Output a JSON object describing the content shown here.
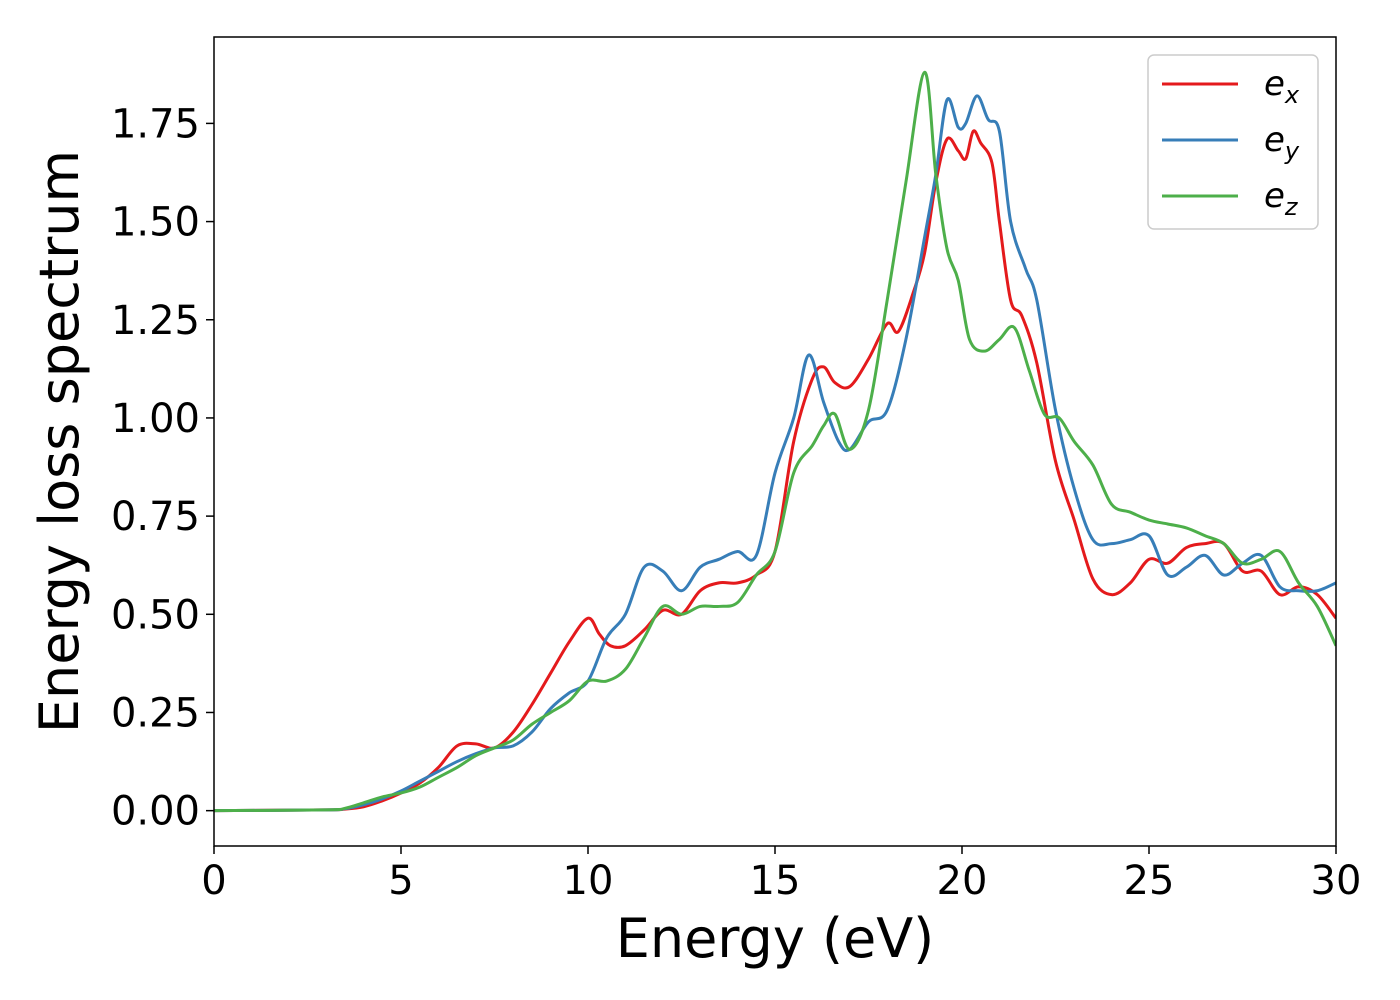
{
  "chart_data": {
    "type": "line",
    "title": "",
    "xlabel": "Energy (eV)",
    "ylabel": "Energy loss spectrum",
    "xlim": [
      0,
      30
    ],
    "ylim": [
      -0.09,
      1.97
    ],
    "xticks": [
      0,
      5,
      10,
      15,
      20,
      25,
      30
    ],
    "yticks": [
      0.0,
      0.25,
      0.5,
      0.75,
      1.0,
      1.25,
      1.5,
      1.75
    ],
    "xtick_labels": [
      "0",
      "5",
      "10",
      "15",
      "20",
      "25",
      "30"
    ],
    "ytick_labels": [
      "0.00",
      "0.25",
      "0.50",
      "0.75",
      "1.00",
      "1.25",
      "1.50",
      "1.75"
    ],
    "grid": false,
    "legend_position": "top-right",
    "series": [
      {
        "name": "e",
        "sub": "x",
        "color": "#e41a1c",
        "x": [
          0,
          3,
          3.5,
          4,
          4.5,
          5,
          5.5,
          6,
          6.5,
          7,
          7.5,
          8,
          8.5,
          9,
          9.5,
          10,
          10.3,
          10.6,
          11,
          11.5,
          12,
          12.5,
          13,
          13.5,
          14,
          14.5,
          15,
          15.5,
          16,
          16.3,
          16.6,
          17,
          17.5,
          18,
          18.3,
          18.7,
          19,
          19.3,
          19.6,
          19.9,
          20.1,
          20.3,
          20.5,
          20.8,
          21,
          21.3,
          21.6,
          22,
          22.5,
          23,
          23.5,
          24,
          24.5,
          25,
          25.5,
          26,
          26.5,
          27,
          27.5,
          28,
          28.5,
          29,
          29.5,
          30
        ],
        "y": [
          0,
          0.002,
          0.004,
          0.01,
          0.025,
          0.045,
          0.07,
          0.11,
          0.165,
          0.17,
          0.16,
          0.2,
          0.27,
          0.35,
          0.43,
          0.49,
          0.45,
          0.42,
          0.42,
          0.46,
          0.51,
          0.5,
          0.56,
          0.58,
          0.58,
          0.6,
          0.66,
          0.94,
          1.1,
          1.13,
          1.09,
          1.08,
          1.15,
          1.24,
          1.22,
          1.32,
          1.42,
          1.6,
          1.71,
          1.68,
          1.66,
          1.73,
          1.7,
          1.65,
          1.5,
          1.3,
          1.26,
          1.14,
          0.89,
          0.74,
          0.59,
          0.55,
          0.58,
          0.64,
          0.63,
          0.67,
          0.68,
          0.68,
          0.61,
          0.61,
          0.55,
          0.57,
          0.55,
          0.49
        ]
      },
      {
        "name": "e",
        "sub": "y",
        "color": "#377eb8",
        "x": [
          0,
          3,
          3.5,
          4,
          4.5,
          5,
          5.5,
          6,
          6.5,
          7,
          7.5,
          8,
          8.5,
          9,
          9.5,
          10,
          10.5,
          11,
          11.5,
          12,
          12.5,
          13,
          13.5,
          14,
          14.5,
          15,
          15.5,
          15.9,
          16.3,
          16.7,
          17,
          17.5,
          18,
          18.5,
          19,
          19.3,
          19.6,
          19.9,
          20.1,
          20.4,
          20.7,
          21,
          21.3,
          21.7,
          22,
          22.5,
          23,
          23.5,
          24,
          24.5,
          25,
          25.5,
          26,
          26.5,
          27,
          27.5,
          28,
          28.5,
          29,
          29.5,
          30
        ],
        "y": [
          0,
          0.002,
          0.005,
          0.015,
          0.03,
          0.05,
          0.075,
          0.1,
          0.125,
          0.145,
          0.16,
          0.165,
          0.2,
          0.26,
          0.3,
          0.33,
          0.44,
          0.5,
          0.62,
          0.61,
          0.56,
          0.62,
          0.64,
          0.66,
          0.65,
          0.86,
          1.0,
          1.16,
          1.04,
          0.94,
          0.92,
          0.99,
          1.02,
          1.2,
          1.46,
          1.62,
          1.81,
          1.74,
          1.75,
          1.82,
          1.76,
          1.73,
          1.5,
          1.38,
          1.3,
          1.02,
          0.82,
          0.69,
          0.68,
          0.69,
          0.7,
          0.6,
          0.62,
          0.65,
          0.6,
          0.63,
          0.65,
          0.57,
          0.56,
          0.56,
          0.58
        ]
      },
      {
        "name": "e",
        "sub": "z",
        "color": "#4daf4a",
        "x": [
          0,
          3,
          3.5,
          4,
          4.5,
          5,
          5.5,
          6,
          6.5,
          7,
          7.5,
          8,
          8.5,
          9,
          9.5,
          10,
          10.5,
          11,
          11.5,
          12,
          12.5,
          13,
          13.5,
          14,
          14.5,
          15,
          15.5,
          16,
          16.3,
          16.6,
          17,
          17.5,
          18,
          18.5,
          19,
          19.3,
          19.6,
          19.9,
          20.2,
          20.6,
          21,
          21.4,
          21.8,
          22.2,
          22.6,
          23,
          23.5,
          24,
          24.5,
          25,
          25.5,
          26,
          26.5,
          27,
          27.5,
          28,
          28.5,
          29,
          29.5,
          30
        ],
        "y": [
          0,
          0.002,
          0.006,
          0.02,
          0.035,
          0.045,
          0.06,
          0.085,
          0.11,
          0.14,
          0.16,
          0.18,
          0.22,
          0.25,
          0.28,
          0.33,
          0.33,
          0.36,
          0.44,
          0.52,
          0.5,
          0.52,
          0.52,
          0.53,
          0.6,
          0.66,
          0.86,
          0.93,
          0.98,
          1.01,
          0.92,
          1.02,
          1.3,
          1.6,
          1.88,
          1.62,
          1.43,
          1.35,
          1.2,
          1.17,
          1.2,
          1.23,
          1.12,
          1.01,
          1.0,
          0.94,
          0.88,
          0.78,
          0.76,
          0.74,
          0.73,
          0.72,
          0.7,
          0.68,
          0.63,
          0.64,
          0.66,
          0.58,
          0.52,
          0.42
        ]
      }
    ]
  }
}
